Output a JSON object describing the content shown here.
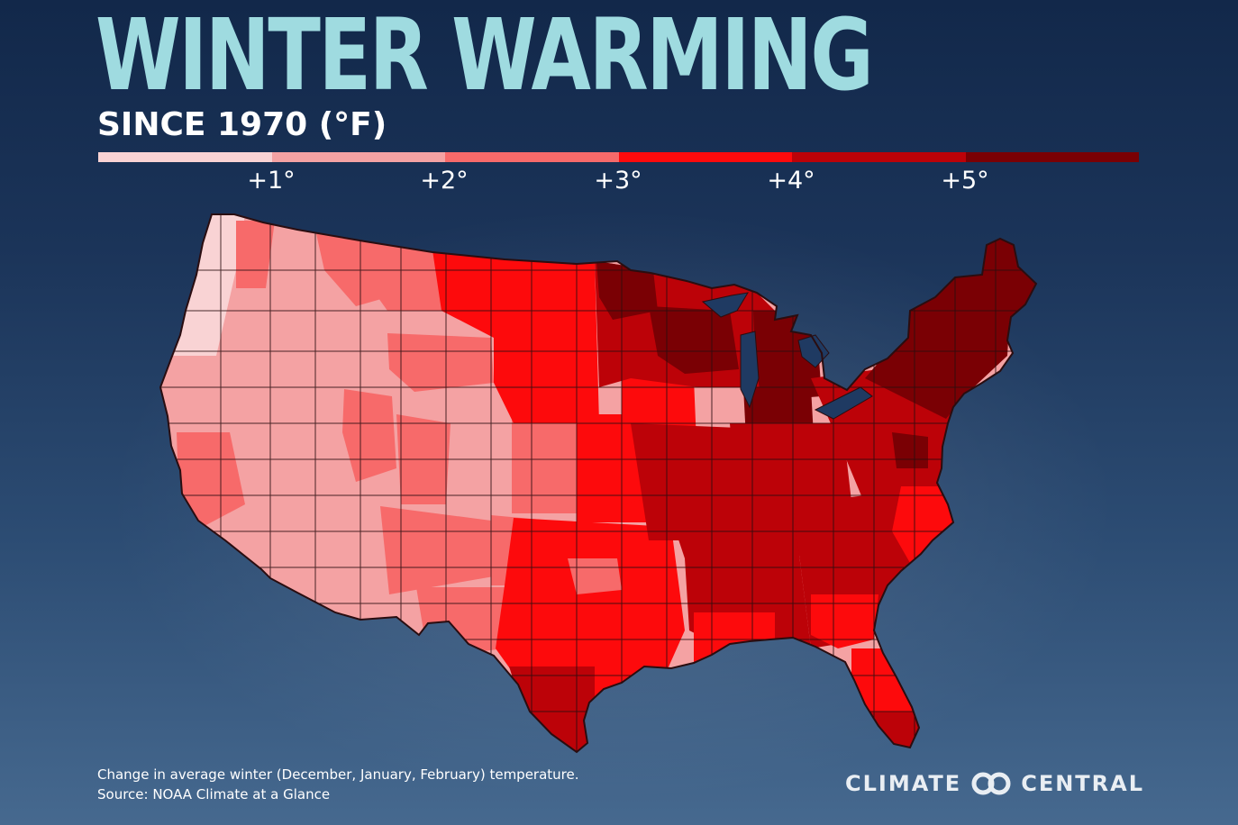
{
  "header": {
    "title": "WINTER WARMING",
    "subtitle": "SINCE 1970 (°F)"
  },
  "legend": {
    "colors": [
      "#f9d3d4",
      "#f4a2a3",
      "#f76a6a",
      "#fd0a0c",
      "#bc0208",
      "#7a0004"
    ],
    "labels": [
      "+1°",
      "+2°",
      "+3°",
      "+4°",
      "+5°"
    ]
  },
  "map": {
    "region": "Contiguous United States, climate divisions",
    "lake_color": "#1f3a62",
    "border_color": "#2a0d10"
  },
  "footer": {
    "note": "Change in average winter (December, January, February) temperature.",
    "source": "Source: NOAA Climate at a Glance"
  },
  "logo": {
    "left": "CLIMATE",
    "right": "CENTRAL",
    "mark_icon": "interlocking-rings-icon"
  }
}
